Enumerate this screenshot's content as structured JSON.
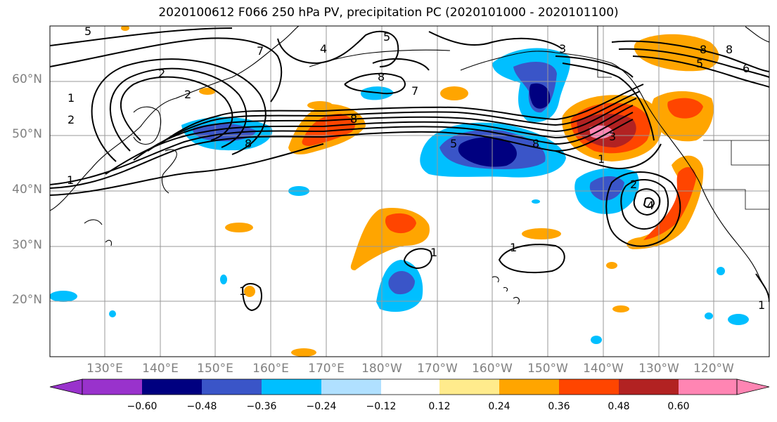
{
  "title": "2020100612 F066 250 hPa PV, precipitation PC (2020101000 - 2020101100)",
  "lat_labels": [
    "60°N",
    "50°N",
    "40°N",
    "30°N",
    "20°N"
  ],
  "lon_labels": [
    "130°E",
    "140°E",
    "150°E",
    "160°E",
    "170°E",
    "180°W",
    "170°W",
    "160°W",
    "150°W",
    "140°W",
    "130°W",
    "120°W"
  ],
  "colorbar": {
    "ticks": [
      "−0.60",
      "−0.48",
      "−0.36",
      "−0.24",
      "−0.12",
      "0.12",
      "0.24",
      "0.36",
      "0.48",
      "0.60"
    ],
    "colors": [
      "#9932cc",
      "#000080",
      "#3a55c8",
      "#00bfff",
      "#b0e0ff",
      "#ffffff",
      "#ffeb8c",
      "#ffa500",
      "#ff4500",
      "#b22222",
      "#ff85b3"
    ]
  },
  "contour_labels": [
    "5",
    "5",
    "4",
    "7",
    "2",
    "2",
    "1",
    "2",
    "8",
    "8",
    "8",
    "7",
    "3",
    "8",
    "5",
    "8",
    "1",
    "3",
    "8",
    "5",
    "6",
    "1",
    "2",
    "4",
    "1",
    "1",
    "1",
    "1",
    "3"
  ]
}
